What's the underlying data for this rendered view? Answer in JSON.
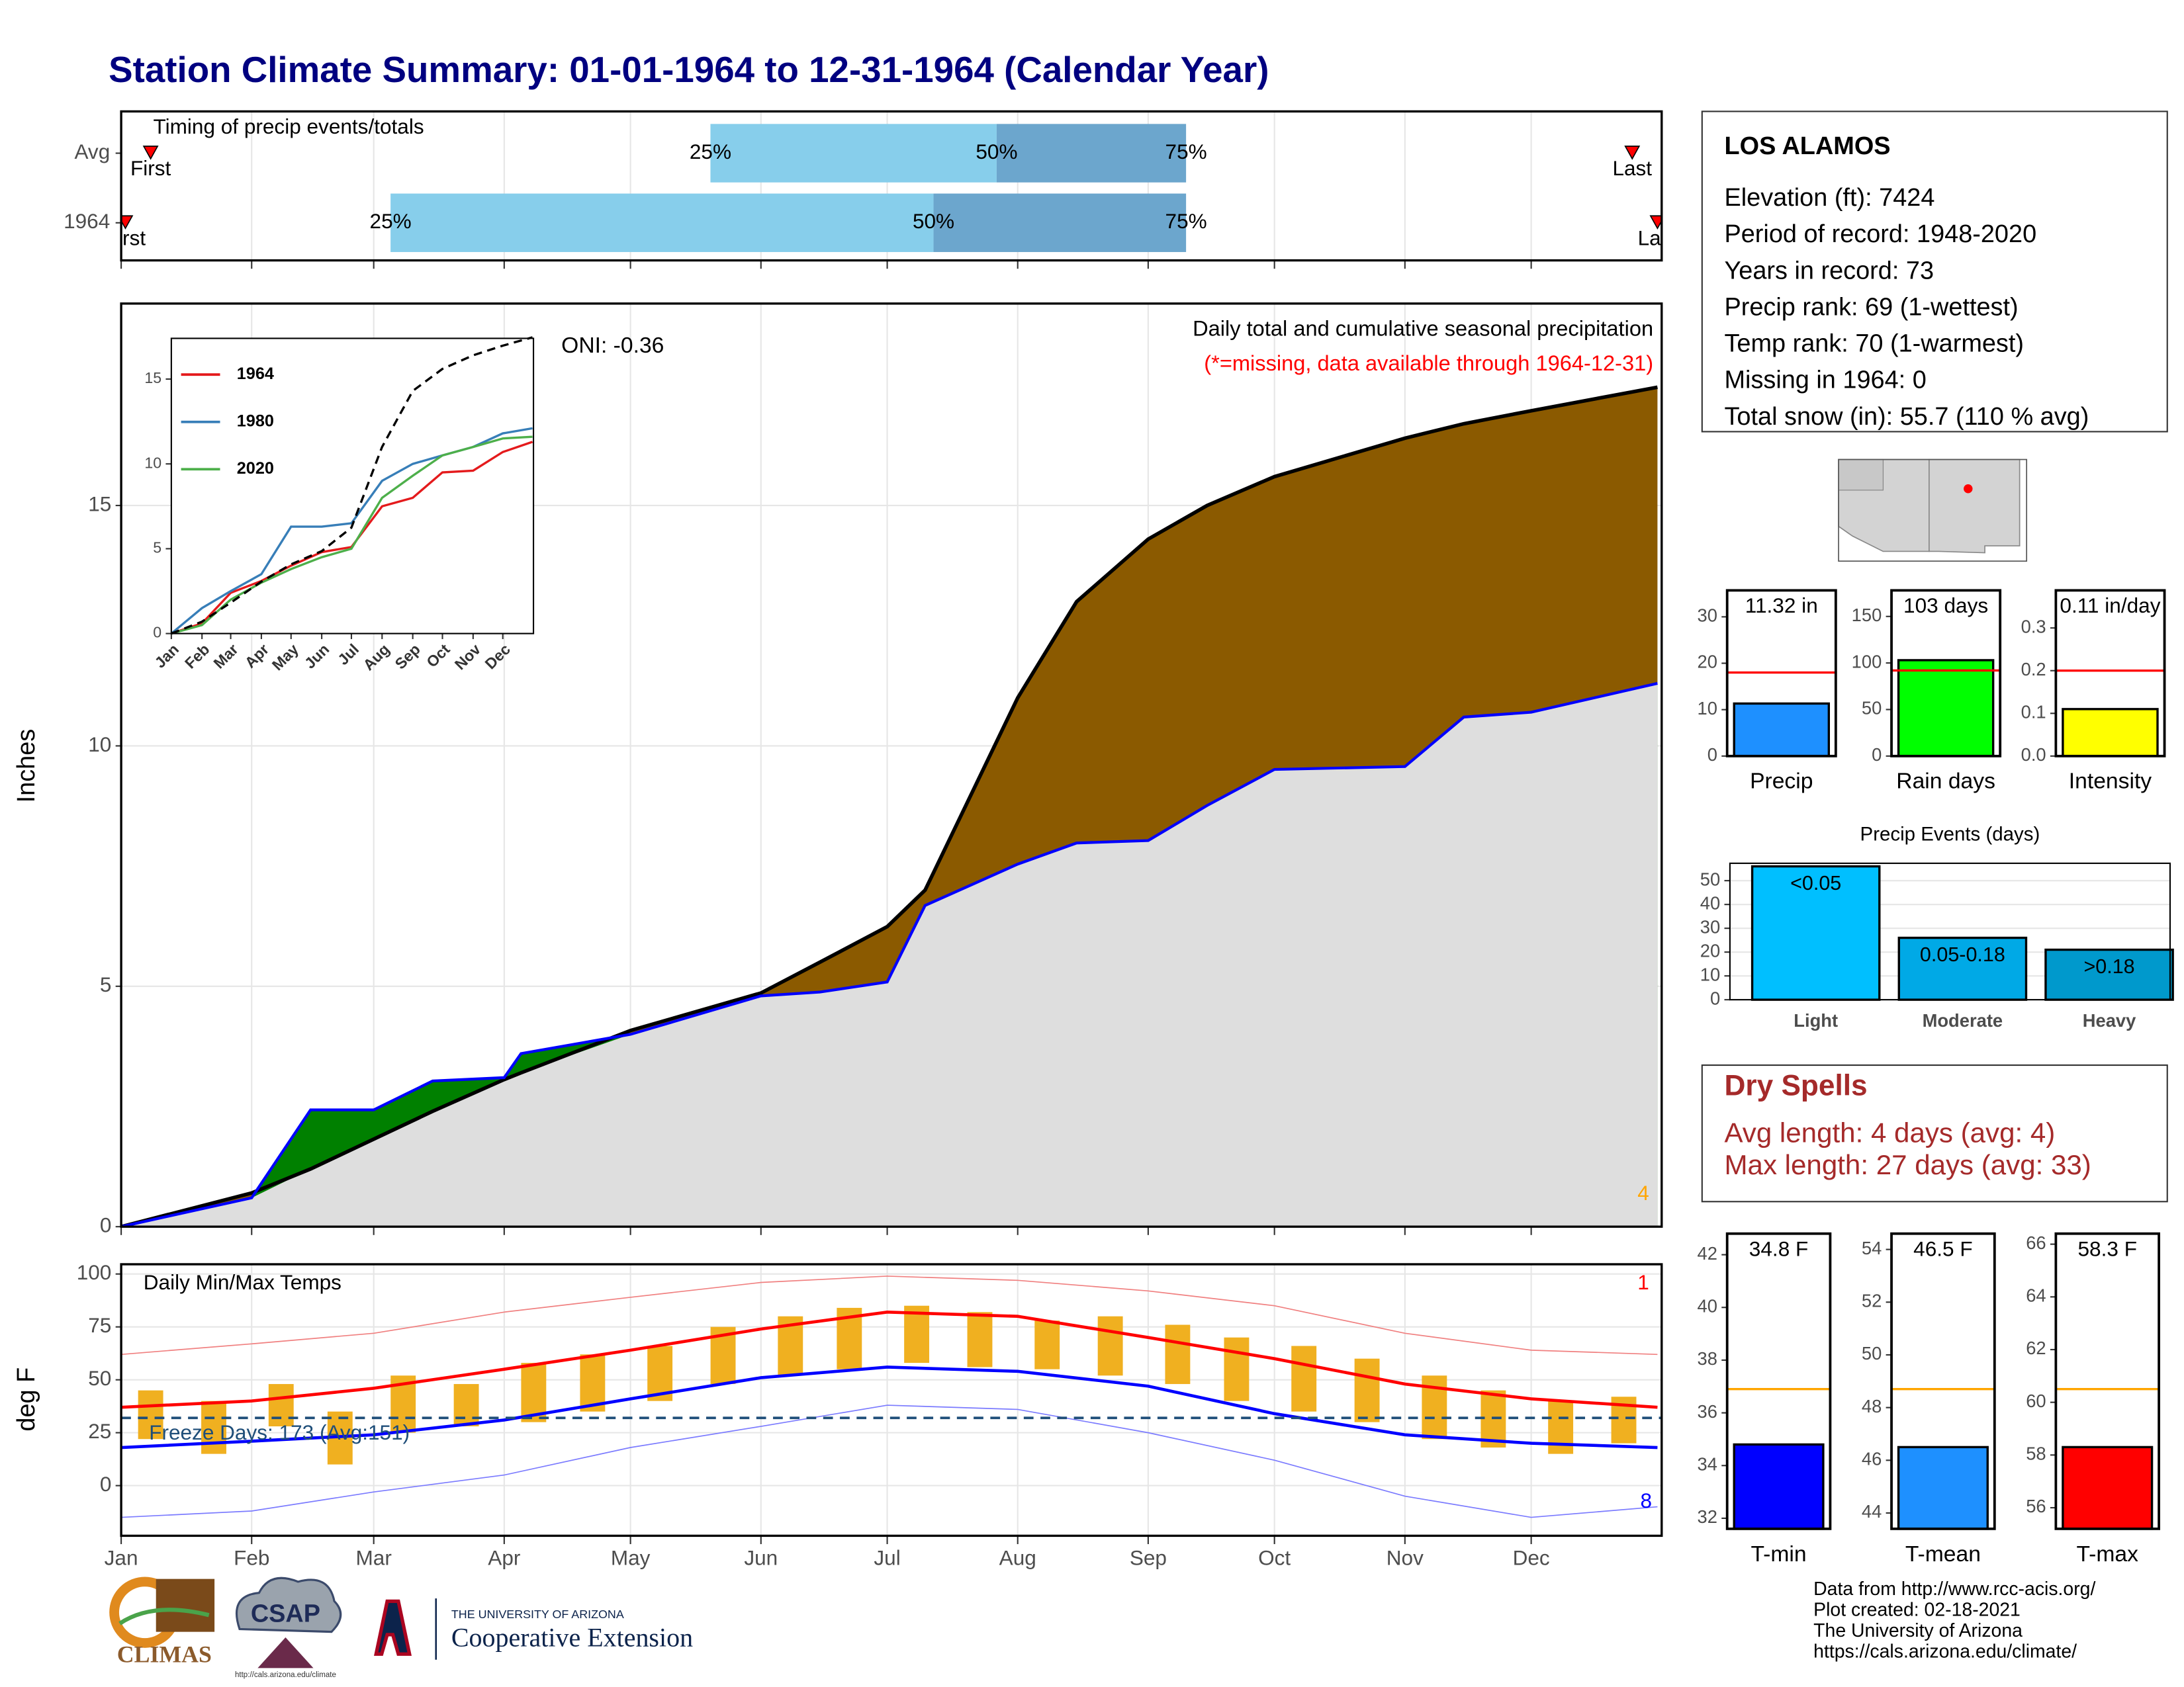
{
  "title": "Station Climate Summary: 01-01-1964 to 12-31-1964 (Calendar Year)",
  "chart_data": [
    {
      "type": "timing",
      "title": "Timing of precip events/totals",
      "categories": [
        "Avg",
        "1964"
      ],
      "first": [
        7,
        1
      ],
      "p25": [
        140,
        64
      ],
      "p50": [
        208,
        193
      ],
      "p75": [
        253,
        253
      ],
      "last": [
        359,
        365
      ],
      "marker_labels": {
        "first": "First",
        "last": "Last",
        "p25": "25%",
        "p50": "50%",
        "p75": "75%"
      },
      "colors": {
        "early": "#87ceeb",
        "late": "#6ca6cd",
        "marker": "#ff0000"
      },
      "xlim": [
        0,
        366
      ],
      "xticks": [
        0,
        31,
        60,
        91,
        121,
        152,
        182,
        213,
        244,
        274,
        305,
        335
      ],
      "grid": true
    },
    {
      "type": "area",
      "title": "Daily total and cumulative seasonal precipitation",
      "subtitle": "(*=missing, data available through 1964-12-31)",
      "annotation": "ONI: -0.36",
      "ylabel": "Inches",
      "corner_note": "4",
      "x": [
        0,
        31,
        45,
        60,
        74,
        91,
        95,
        121,
        152,
        166,
        182,
        191,
        213,
        227,
        244,
        258,
        274,
        305,
        319,
        335,
        365
      ],
      "series": [
        {
          "color": "#0000ff",
          "values": [
            0,
            0.6,
            2.43,
            2.43,
            3.03,
            3.1,
            3.6,
            4.0,
            4.8,
            4.88,
            5.09,
            6.68,
            7.54,
            7.98,
            8.03,
            8.76,
            9.51,
            9.57,
            10.6,
            10.7,
            11.3
          ]
        },
        {
          "color": "#000000",
          "values": [
            0,
            0.7,
            1.2,
            1.82,
            2.4,
            3.06,
            3.2,
            4.08,
            4.86,
            5.5,
            6.24,
            7.0,
            11.0,
            13.0,
            14.3,
            15.0,
            15.6,
            16.4,
            16.7,
            16.97,
            17.46
          ]
        }
      ],
      "fill_colors": {
        "below": "#dedede",
        "deficit": "#8b5a00",
        "surplus": "#008000"
      },
      "xlim": [
        0,
        366
      ],
      "xticks": [
        0,
        31,
        60,
        91,
        121,
        152,
        182,
        213,
        244,
        274,
        305,
        335
      ],
      "ylim": [
        0,
        19.2
      ],
      "yticks": [
        0,
        5,
        10,
        15
      ],
      "grid": true
    },
    {
      "type": "line",
      "x": [
        0,
        31,
        60,
        91,
        121,
        152,
        182,
        213,
        244,
        274,
        305,
        335,
        365
      ],
      "series": [
        {
          "name": "1964",
          "color": "#e41a1c",
          "values": [
            0,
            0.6,
            2.4,
            3.1,
            4.0,
            4.8,
            5.1,
            7.5,
            8.0,
            9.5,
            9.6,
            10.7,
            11.3
          ]
        },
        {
          "name": "1980",
          "color": "#377eb8",
          "values": [
            0,
            1.5,
            2.5,
            3.5,
            6.3,
            6.3,
            6.5,
            9.0,
            10.0,
            10.5,
            11.0,
            11.8,
            12.1
          ]
        },
        {
          "name": "2020",
          "color": "#4daf4a",
          "values": [
            0,
            0.5,
            2.0,
            3.0,
            3.8,
            4.5,
            5.0,
            8.0,
            9.3,
            10.5,
            11.0,
            11.5,
            11.6
          ]
        },
        {
          "color": "#000000",
          "dash": true,
          "values": [
            0,
            0.7,
            1.82,
            3.06,
            4.08,
            4.86,
            6.24,
            11.0,
            14.3,
            15.6,
            16.4,
            16.97,
            17.46
          ]
        }
      ],
      "xlim": [
        0,
        366
      ],
      "xticks": [
        {
          "value": 0,
          "label": "Jan"
        },
        {
          "value": 31,
          "label": "Feb"
        },
        {
          "value": 60,
          "label": "Mar"
        },
        {
          "value": 91,
          "label": "Apr"
        },
        {
          "value": 121,
          "label": "May"
        },
        {
          "value": 152,
          "label": "Jun"
        },
        {
          "value": 182,
          "label": "Jul"
        },
        {
          "value": 213,
          "label": "Aug"
        },
        {
          "value": 244,
          "label": "Sep"
        },
        {
          "value": 274,
          "label": "Oct"
        },
        {
          "value": 305,
          "label": "Nov"
        },
        {
          "value": 335,
          "label": "Dec"
        }
      ],
      "ylim": [
        0,
        17.4
      ],
      "yticks": [
        0,
        5,
        10,
        15
      ]
    },
    {
      "type": "temperature",
      "title": "Daily Min/Max Temps",
      "annotation": "Freeze Days: 173 (Avg:151)",
      "ylabel": "deg F",
      "corner_notes": [
        "1",
        "8"
      ],
      "x": [
        0,
        31,
        60,
        91,
        121,
        152,
        182,
        213,
        244,
        274,
        305,
        335,
        365
      ],
      "series": [
        {
          "color": "#ff0000",
          "width": 2.2,
          "values": [
            37,
            40,
            46,
            55,
            64,
            74,
            82,
            80,
            70,
            60,
            48,
            41,
            37
          ]
        },
        {
          "color": "#0000ff",
          "width": 2.2,
          "values": [
            18,
            21,
            24,
            31,
            41,
            51,
            56,
            54,
            47,
            34,
            24,
            20,
            18
          ]
        },
        {
          "color": "#f08080",
          "width": 0.8,
          "values": [
            62,
            67,
            72,
            82,
            89,
            96,
            99,
            97,
            92,
            85,
            72,
            64,
            62
          ]
        },
        {
          "color": "#7b7bff",
          "width": 0.8,
          "values": [
            -15,
            -12,
            -3,
            5,
            18,
            28,
            38,
            36,
            25,
            12,
            -5,
            -15,
            -10
          ]
        }
      ],
      "daily": {
        "color": "#f0b020",
        "x": [
          7,
          22,
          38,
          52,
          67,
          82,
          98,
          112,
          128,
          143,
          159,
          173,
          189,
          204,
          220,
          235,
          251,
          265,
          281,
          296,
          312,
          326,
          342,
          357
        ],
        "high": [
          45,
          40,
          48,
          35,
          52,
          48,
          58,
          62,
          66,
          75,
          80,
          84,
          85,
          82,
          78,
          80,
          76,
          70,
          66,
          60,
          52,
          45,
          40,
          42
        ],
        "low": [
          22,
          15,
          28,
          10,
          25,
          28,
          30,
          35,
          40,
          48,
          52,
          55,
          58,
          56,
          55,
          52,
          48,
          40,
          35,
          30,
          22,
          18,
          15,
          20
        ]
      },
      "freeze": 32,
      "freeze_color": "#1f4e79",
      "xlim": [
        0,
        366
      ],
      "xticks": [
        {
          "value": 0,
          "label": "Jan"
        },
        {
          "value": 31,
          "label": "Feb"
        },
        {
          "value": 60,
          "label": "Mar"
        },
        {
          "value": 91,
          "label": "Apr"
        },
        {
          "value": 121,
          "label": "May"
        },
        {
          "value": 152,
          "label": "Jun"
        },
        {
          "value": 182,
          "label": "Jul"
        },
        {
          "value": 213,
          "label": "Aug"
        },
        {
          "value": 244,
          "label": "Sep"
        },
        {
          "value": 274,
          "label": "Oct"
        },
        {
          "value": 305,
          "label": "Nov"
        },
        {
          "value": 335,
          "label": "Dec"
        }
      ],
      "ylim": [
        -23.7,
        104.6
      ],
      "yticks": [
        0,
        25,
        50,
        75,
        100
      ],
      "grid": true
    },
    {
      "type": "bar",
      "categories": [
        "Precip"
      ],
      "values": [
        11.32
      ],
      "value_labels": [
        "11.32 in"
      ],
      "avg": 18,
      "avg_color": "#ff0000",
      "color": "#1e90ff",
      "ylim": [
        0,
        35.7
      ],
      "yticks": [
        0,
        10,
        20,
        30
      ]
    },
    {
      "type": "bar",
      "categories": [
        "Rain days"
      ],
      "values": [
        103
      ],
      "value_labels": [
        "103 days"
      ],
      "avg": 92,
      "avg_color": "#ff0000",
      "color": "#00ff00",
      "ylim": [
        0,
        178
      ],
      "yticks": [
        0,
        50,
        100,
        150
      ]
    },
    {
      "type": "bar",
      "categories": [
        "Intensity"
      ],
      "values": [
        0.11
      ],
      "value_labels": [
        "0.11 in/day"
      ],
      "avg": 0.2,
      "avg_color": "#ff0000",
      "color": "#ffff00",
      "ylim": [
        0,
        0.388
      ],
      "yticks": [
        {
          "value": 0,
          "label": "0.0"
        },
        0.1,
        0.2,
        0.3
      ]
    },
    {
      "type": "bar",
      "title": "Precip Events (days)",
      "categories": [
        "Light",
        "Moderate",
        "Heavy"
      ],
      "bin_labels": [
        "<0.05",
        "0.05-0.18",
        ">0.18"
      ],
      "values": [
        56,
        26,
        21
      ],
      "colors": [
        "#00bfff",
        "#00a9e6",
        "#0099cc"
      ],
      "ylim": [
        0,
        57.3
      ],
      "yticks": [
        0,
        10,
        20,
        30,
        40,
        50
      ],
      "grid": true
    },
    {
      "type": "bar",
      "categories": [
        "T-min"
      ],
      "values": [
        34.8
      ],
      "value_labels": [
        "34.8 F"
      ],
      "avg": 36.9,
      "avg_color": "#ffa500",
      "color": "#0000ff",
      "ylim": [
        31.6,
        42.8
      ],
      "yticks": [
        32,
        34,
        36,
        38,
        40,
        42
      ]
    },
    {
      "type": "bar",
      "categories": [
        "T-mean"
      ],
      "values": [
        46.5
      ],
      "value_labels": [
        "46.5 F"
      ],
      "avg": 48.7,
      "avg_color": "#ffa500",
      "color": "#1e90ff",
      "ylim": [
        43.4,
        54.6
      ],
      "yticks": [
        44,
        46,
        48,
        50,
        52,
        54
      ]
    },
    {
      "type": "bar",
      "categories": [
        "T-max"
      ],
      "values": [
        58.3
      ],
      "value_labels": [
        "58.3 F"
      ],
      "avg": 60.5,
      "avg_color": "#ffa500",
      "color": "#ff0000",
      "ylim": [
        55.2,
        66.4
      ],
      "yticks": [
        56,
        58,
        60,
        62,
        64,
        66
      ]
    }
  ],
  "station": {
    "name": "LOS ALAMOS",
    "lines": [
      "Elevation (ft): 7424",
      "Period of record: 1948-2020",
      "Years in record: 73",
      "Precip rank: 69 (1-wettest)",
      "Temp rank: 70 (1-warmest)",
      "Missing in 1964: 0",
      "Total snow (in): 55.7 (110 % avg)"
    ]
  },
  "dry_spells": {
    "title": "Dry Spells",
    "lines": [
      "Avg length: 4 days (avg: 4)",
      "Max length: 27 days (avg: 33)"
    ]
  },
  "footer": {
    "lines": [
      "Data from http://www.rcc-acis.org/",
      "Plot created: 02-18-2021",
      "The University of Arizona",
      "https://cals.arizona.edu/climate/"
    ]
  },
  "logos": {
    "climas": "CLIMAS",
    "csap": "CSAP",
    "csap_url": "http://cals.arizona.edu/climate",
    "ua": "THE UNIVERSITY OF ARIZONA",
    "extension": "Cooperative Extension"
  }
}
